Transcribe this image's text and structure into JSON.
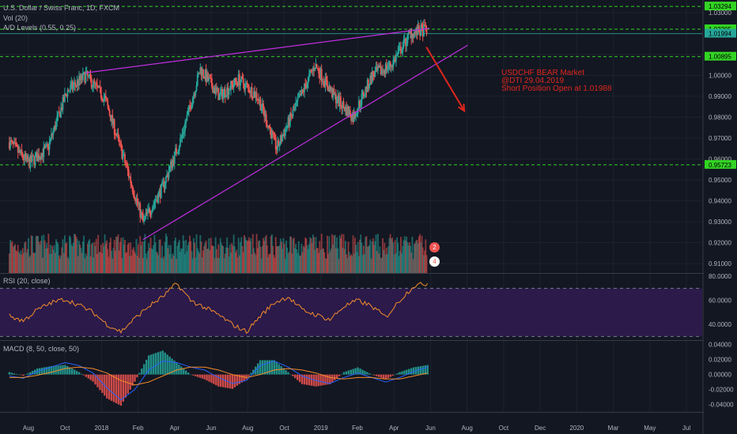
{
  "header": {
    "symbol_line": "U.S. Dollar / Swiss Franc, 1D, FXCM",
    "vol_line": "Vol (20)",
    "ad_line": "A/D Levels (0.55, 0.25)"
  },
  "annotation": {
    "line1": "USDCHF BEAR Market",
    "line2": "@DTI 29.04.2019",
    "line3": "Short Position Open at 1.01988"
  },
  "event_badges": [
    "2",
    "4"
  ],
  "colors": {
    "background": "#131722",
    "up": "#26a69a",
    "down": "#ef5350",
    "trendline": "#c12ee0",
    "level_line": "#33d424",
    "arrow": "#e0261d",
    "rsi_line": "#f48c2b",
    "rsi_band": "#2b1a4a",
    "macd_line": "#2962ff",
    "signal_line": "#f48c2b"
  },
  "chart_data": [
    {
      "type": "candlestick",
      "title": "U.S. Dollar / Swiss Franc, 1D, FXCM",
      "x_ticks": [
        "Aug",
        "Oct",
        "2018",
        "Feb",
        "Apr",
        "Jun",
        "Aug",
        "Oct",
        "2019",
        "Feb",
        "Apr",
        "Jun",
        "Aug",
        "Oct",
        "Dec",
        "2020",
        "Mar",
        "May",
        "Jul"
      ],
      "y_ticks": [
        "1.03000",
        "1.02000",
        "1.01000",
        "1.00000",
        "0.99000",
        "0.98000",
        "0.97000",
        "0.96000",
        "0.95000",
        "0.94000",
        "0.93000",
        "0.92000",
        "0.91000"
      ],
      "ylim": [
        0.9055,
        1.036
      ],
      "price_labels": [
        "1.03294",
        "1.02205",
        "1.01994",
        "1.00895",
        "0.95723"
      ],
      "levels": [
        1.03294,
        1.02205,
        1.00895,
        0.95723
      ],
      "last_price": 1.01994,
      "trendlines": [
        {
          "from": [
            "Nov 2017",
            1.0012
          ],
          "to": [
            "May 2019",
            1.0225
          ]
        },
        {
          "from": [
            "Feb 2018",
            0.9215
          ],
          "to": [
            "Jul 2019",
            1.0144
          ]
        }
      ],
      "projection": "bearish arrow from late Apr 2019 pointing down",
      "price_path": [
        [
          "Jul 2017",
          0.968
        ],
        [
          "Aug 2017",
          0.958
        ],
        [
          "Sep 2017",
          0.965
        ],
        [
          "Oct 2017",
          0.992
        ],
        [
          "Nov 2017",
          1.0
        ],
        [
          "Dec 2017",
          0.989
        ],
        [
          "Jan 2018",
          0.96
        ],
        [
          "Feb 2018",
          0.93
        ],
        [
          "Mar 2018",
          0.946
        ],
        [
          "Apr 2018",
          0.97
        ],
        [
          "May 2018",
          1.003
        ],
        [
          "Jun 2018",
          0.99
        ],
        [
          "Jul 2018",
          0.998
        ],
        [
          "Aug 2018",
          0.99
        ],
        [
          "Sep 2018",
          0.965
        ],
        [
          "Oct 2018",
          0.985
        ],
        [
          "Nov 2018",
          1.005
        ],
        [
          "Dec 2018",
          0.99
        ],
        [
          "Jan 2019",
          0.98
        ],
        [
          "Feb 2019",
          1.0
        ],
        [
          "Mar 2019",
          1.005
        ],
        [
          "Apr 2019",
          1.02
        ],
        [
          "end Apr 2019",
          1.022
        ]
      ]
    },
    {
      "type": "line",
      "title": "RSI (20, close)",
      "y_ticks": [
        "80.0000",
        "60.0000",
        "40.0000"
      ],
      "ylim": [
        27,
        82
      ],
      "band": [
        30,
        70
      ],
      "values": [
        47,
        43,
        52,
        58,
        61,
        56,
        50,
        40,
        34,
        45,
        55,
        63,
        74,
        60,
        54,
        48,
        40,
        34,
        47,
        58,
        63,
        52,
        48,
        44,
        55,
        60,
        55,
        46,
        60,
        72,
        74
      ]
    },
    {
      "type": "line",
      "title": "MACD (8, 50, close, 50)",
      "y_ticks": [
        "0.04000",
        "0.02000",
        "0.00000",
        "-0.02000",
        "-0.04000"
      ],
      "ylim": [
        -0.05,
        0.045
      ],
      "series": [
        {
          "name": "MACD",
          "values": [
            -0.002,
            -0.005,
            0.004,
            0.01,
            0.016,
            0.012,
            0.002,
            -0.018,
            -0.034,
            -0.02,
            0.006,
            0.018,
            0.016,
            0.01,
            0.006,
            -0.004,
            -0.012,
            -0.008,
            0.012,
            0.018,
            0.01,
            -0.002,
            -0.008,
            -0.012,
            -0.004,
            0.002,
            -0.004,
            -0.01,
            -0.004,
            0.004,
            0.01
          ]
        },
        {
          "name": "Signal",
          "values": [
            -0.004,
            -0.004,
            -0.001,
            0.003,
            0.008,
            0.01,
            0.008,
            0.002,
            -0.008,
            -0.014,
            -0.01,
            -0.002,
            0.006,
            0.01,
            0.01,
            0.006,
            0.0,
            -0.004,
            0.0,
            0.006,
            0.008,
            0.006,
            0.002,
            -0.004,
            -0.006,
            -0.004,
            -0.004,
            -0.006,
            -0.006,
            -0.002,
            0.002
          ]
        }
      ]
    }
  ]
}
